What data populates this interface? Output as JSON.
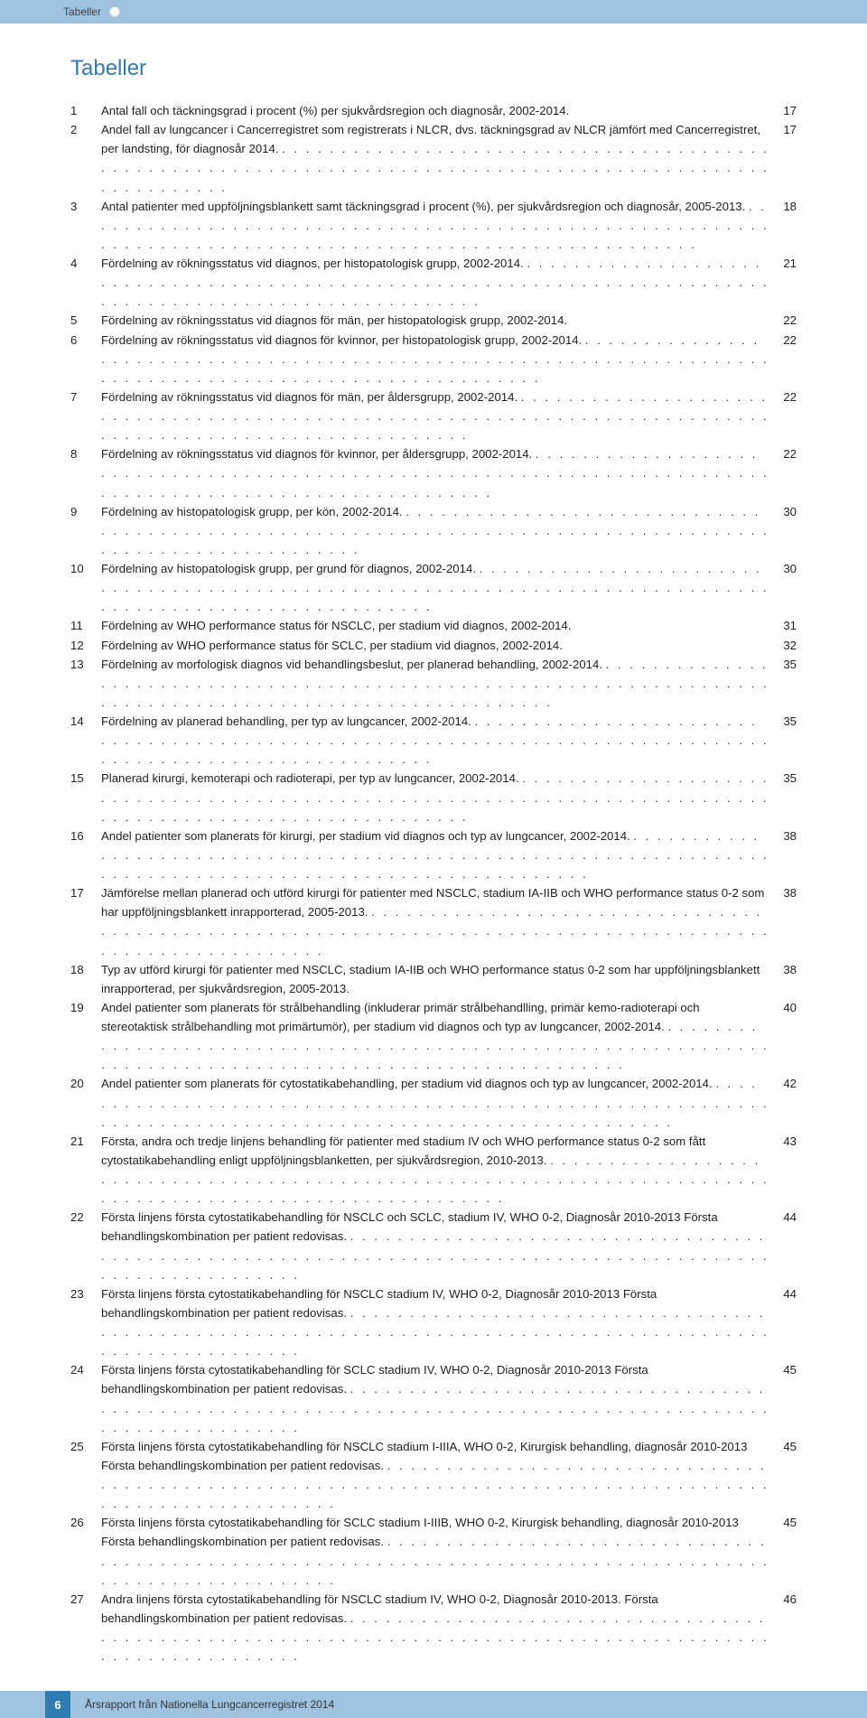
{
  "header": {
    "tab": "Tabeller"
  },
  "title": "Tabeller",
  "toc": [
    {
      "n": "1",
      "t": "Antal fall och täckningsgrad i procent (%) per sjukvårdsregion och diagnosår, 2002-2014.",
      "p": "17",
      "noleader": true
    },
    {
      "n": "2",
      "t": "Andel fall av lungcancer i Cancerregistret som registrerats i NLCR, dvs. täckningsgrad av NLCR jämfört med Cancerregistret, per landsting, för diagnosår 2014.",
      "p": "17"
    },
    {
      "n": "3",
      "t": "Antal patienter med uppföljningsblankett samt täckningsgrad i procent (%), per sjukvårdsregion och diagnosår, 2005-2013.",
      "p": "18"
    },
    {
      "n": "4",
      "t": "Fördelning av rökningsstatus vid diagnos, per histopatologisk grupp, 2002-2014.",
      "p": "21"
    },
    {
      "n": "5",
      "t": "Fördelning av rökningsstatus vid diagnos för män, per histopatologisk grupp, 2002-2014.",
      "p": "22",
      "noleader": true
    },
    {
      "n": "6",
      "t": "Fördelning av rökningsstatus vid diagnos för kvinnor, per histopatologisk grupp, 2002-2014.",
      "p": "22"
    },
    {
      "n": "7",
      "t": "Fördelning av rökningsstatus vid diagnos för män, per åldersgrupp, 2002-2014.",
      "p": "22"
    },
    {
      "n": "8",
      "t": "Fördelning av rökningsstatus vid diagnos för kvinnor, per åldersgrupp, 2002-2014.",
      "p": "22"
    },
    {
      "n": "9",
      "t": "Fördelning av histopatologisk grupp, per kön, 2002-2014.",
      "p": "30"
    },
    {
      "n": "10",
      "t": "Fördelning av histopatologisk grupp, per grund för diagnos, 2002-2014.",
      "p": "30"
    },
    {
      "n": "11",
      "t": "Fördelning av WHO performance status för NSCLC, per stadium vid diagnos, 2002-2014.",
      "p": "31",
      "noleader": true
    },
    {
      "n": "12",
      "t": "Fördelning av WHO performance status för SCLC, per stadium vid diagnos, 2002-2014.",
      "p": "32",
      "noleader": true
    },
    {
      "n": "13",
      "t": "Fördelning av morfologisk diagnos vid behandlingsbeslut, per planerad behandling, 2002-2014.",
      "p": "35"
    },
    {
      "n": "14",
      "t": "Fördelning av planerad behandling, per typ av lungcancer, 2002-2014.",
      "p": "35"
    },
    {
      "n": "15",
      "t": "Planerad kirurgi, kemoterapi och radioterapi, per typ av lungcancer, 2002-2014.",
      "p": "35"
    },
    {
      "n": "16",
      "t": "Andel patienter som planerats för kirurgi, per stadium vid diagnos och typ av lungcancer, 2002-2014.",
      "p": "38"
    },
    {
      "n": "17",
      "t": "Jämförelse mellan planerad och utförd kirurgi för patienter med NSCLC, stadium IA-IIB och WHO performance status 0-2 som har uppföljningsblankett inrapporterad, 2005-2013.",
      "p": "38"
    },
    {
      "n": "18",
      "t": "Typ av utförd kirurgi för patienter med NSCLC, stadium IA-IIB och WHO performance status 0-2 som har uppföljningsblankett inrapporterad, per sjukvårdsregion, 2005-2013.",
      "p": "38",
      "noleader": true
    },
    {
      "n": "19",
      "t": "Andel patienter som planerats för strålbehandling (inkluderar primär strålbehandlling, primär kemo-radioterapi och stereotaktisk strålbehandling mot primärtumör), per stadium vid diagnos och typ av lungcancer, 2002-2014.",
      "p": "40"
    },
    {
      "n": "20",
      "t": "Andel patienter som planerats för cytostatikabehandling, per stadium vid diagnos och typ av lungcancer, 2002-2014.",
      "p": "42"
    },
    {
      "n": "21",
      "t": "Första, andra och tredje linjens behandling för patienter med stadium IV och WHO performance status 0-2 som fått cytostatikabehandling enligt uppföljningsblanketten, per sjukvårdsregion, 2010-2013.",
      "p": "43"
    },
    {
      "n": "22",
      "t": "Första linjens första cytostatikabehandling för NSCLC och SCLC, stadium IV, WHO 0-2, Diagnosår 2010-2013 Första behandlingskombination per patient redovisas.",
      "p": "44"
    },
    {
      "n": "23",
      "t": "Första linjens första cytostatikabehandling för NSCLC stadium IV, WHO 0-2, Diagnosår 2010-2013 Första behandlingskombination per patient redovisas.",
      "p": "44"
    },
    {
      "n": "24",
      "t": "Första linjens första cytostatikabehandling för SCLC stadium IV, WHO 0-2, Diagnosår 2010-2013 Första behandlingskombination per patient redovisas.",
      "p": "45"
    },
    {
      "n": "25",
      "t": "Första linjens första cytostatikabehandling för NSCLC stadium I-IIIA, WHO 0-2, Kirurgisk behandling, diagnosår 2010-2013 Första behandlingskombination per patient redovisas.",
      "p": "45"
    },
    {
      "n": "26",
      "t": "Första linjens första cytostatikabehandling för SCLC stadium I-IIIB, WHO 0-2, Kirurgisk behandling, diagnosår 2010-2013 Första behandlingskombination per patient redovisas.",
      "p": "45"
    },
    {
      "n": "27",
      "t": "Andra linjens första cytostatikabehandling för NSCLC stadium IV, WHO 0-2, Diagnosår 2010-2013. Första behandlingskombination per patient redovisas.",
      "p": "46"
    }
  ],
  "footer": {
    "pagenum": "6",
    "text": "Årsrapport från Nationella Lungcancerregistret 2014"
  },
  "colors": {
    "bar": "#9dc3e0",
    "accent": "#2f7cb3"
  }
}
